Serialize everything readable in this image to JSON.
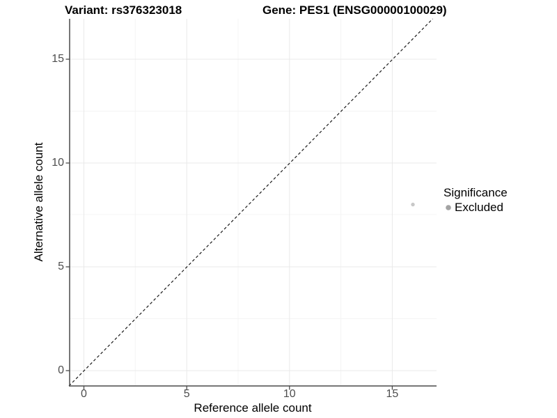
{
  "header": {
    "title_left": "Variant: rs376323018",
    "title_right": "Gene: PES1 (ENSG00000100029)"
  },
  "legend": {
    "title": "Significance",
    "position": "right",
    "items": [
      {
        "label": "Excluded",
        "marker": "circle",
        "color": "#a3a3a3"
      }
    ]
  },
  "chart_data": {
    "type": "scatter",
    "title": "Variant: rs376323018 / Gene: PES1 (ENSG00000100029)",
    "xlabel": "Reference allele count",
    "ylabel": "Alternative allele count",
    "xlim": [
      -0.7,
      17.2
    ],
    "ylim": [
      -0.75,
      17.0
    ],
    "x_ticks": [
      0,
      5,
      10,
      15
    ],
    "y_ticks": [
      0,
      5,
      10,
      15
    ],
    "x_tick_labels": [
      "0",
      "5",
      "10",
      "15"
    ],
    "y_tick_labels": [
      "0",
      "5",
      "10",
      "15"
    ],
    "grid": {
      "major": true,
      "minor": true
    },
    "series": [
      {
        "name": "Excluded",
        "color": "#c8c8c8",
        "marker": "circle",
        "points": [
          {
            "x": 16,
            "y": 8
          }
        ]
      }
    ],
    "reference_line": {
      "type": "identity y = x",
      "style": "dashed",
      "color": "#1a1a1a"
    }
  },
  "colors": {
    "background": "#ffffff",
    "grid_major": "#e9e9e9",
    "grid_minor": "#f4f4f4",
    "axis_line": "#4a4a4a",
    "tick_label": "#4d4d4d"
  }
}
